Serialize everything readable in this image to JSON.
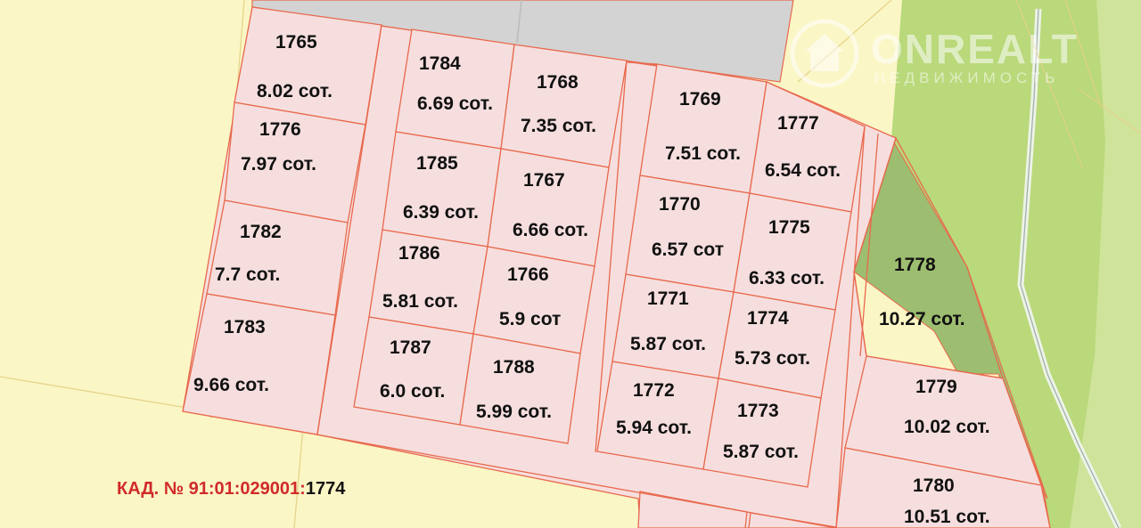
{
  "plots": [
    {
      "id": "1765",
      "area": "8.02 сот."
    },
    {
      "id": "1776",
      "area": "7.97 сот."
    },
    {
      "id": "1782",
      "area": "7.7 сот."
    },
    {
      "id": "1783",
      "area": "9.66 сот."
    },
    {
      "id": "1784",
      "area": "6.69 сот."
    },
    {
      "id": "1785",
      "area": "6.39 сот."
    },
    {
      "id": "1786",
      "area": "5.81 сот."
    },
    {
      "id": "1787",
      "area": "6.0 сот."
    },
    {
      "id": "1768",
      "area": "7.35 сот."
    },
    {
      "id": "1767",
      "area": "6.66 сот."
    },
    {
      "id": "1766",
      "area": "5.9 сот"
    },
    {
      "id": "1788",
      "area": "5.99 сот."
    },
    {
      "id": "1769",
      "area": "7.51 сот."
    },
    {
      "id": "1770",
      "area": "6.57 сот"
    },
    {
      "id": "1771",
      "area": "5.87 сот."
    },
    {
      "id": "1772",
      "area": "5.94 сот."
    },
    {
      "id": "1777",
      "area": "6.54 сот."
    },
    {
      "id": "1775",
      "area": "6.33 сот."
    },
    {
      "id": "1774",
      "area": "5.73 сот."
    },
    {
      "id": "1773",
      "area": "5.87 сот."
    },
    {
      "id": "1778",
      "area": "10.27 сот."
    },
    {
      "id": "1779",
      "area": "10.02 сот."
    },
    {
      "id": "1780",
      "area": "10.51 сот."
    }
  ],
  "cadastral": {
    "prefix": "КАД. №  91:01:029001:",
    "number": "1774"
  },
  "watermark": {
    "brand": "ONREALT",
    "subtitle": "НЕДВИЖИМОСТЬ"
  },
  "colors": {
    "parcel_fill": "#f6dede",
    "parcel_border": "#e8694d",
    "background": "#fbf6c6",
    "green_zone": "#b9d97a",
    "dark_green_zone": "#9dbd70",
    "road_gray": "#d2d2d2",
    "cadastral_red": "#d12a2a"
  }
}
